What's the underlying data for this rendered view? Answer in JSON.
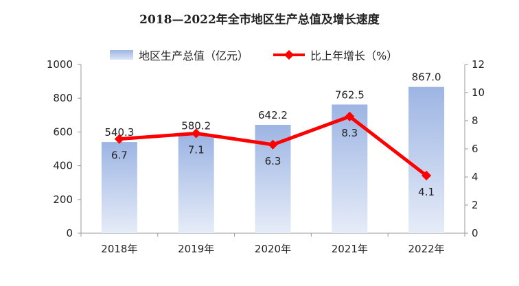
{
  "chart_data": {
    "type": "bar+line",
    "title": "2018—2022年全市地区生产总值及增长速度",
    "categories": [
      "2018年",
      "2019年",
      "2020年",
      "2021年",
      "2022年"
    ],
    "series": [
      {
        "name": "地区生产总值（亿元）",
        "type": "bar",
        "axis": "left",
        "values": [
          540.3,
          580.2,
          642.2,
          762.5,
          867.0
        ],
        "labels": [
          "540.3",
          "580.2",
          "642.2",
          "762.5",
          "867.0"
        ],
        "color": "#9db5e3"
      },
      {
        "name": "比上年增长（%）",
        "type": "line",
        "axis": "right",
        "values": [
          6.7,
          7.1,
          6.3,
          8.3,
          4.1
        ],
        "labels": [
          "6.7",
          "7.1",
          "6.3",
          "8.3",
          "4.1"
        ],
        "color": "#ff0000"
      }
    ],
    "y_left": {
      "ylim": [
        0,
        1000
      ],
      "ticks": [
        "0",
        "200",
        "400",
        "600",
        "800",
        "1000"
      ]
    },
    "y_right": {
      "ylim": [
        0,
        12
      ],
      "ticks": [
        "0",
        "2",
        "4",
        "6",
        "8",
        "10",
        "12"
      ]
    },
    "grid": false,
    "legend": "top"
  }
}
